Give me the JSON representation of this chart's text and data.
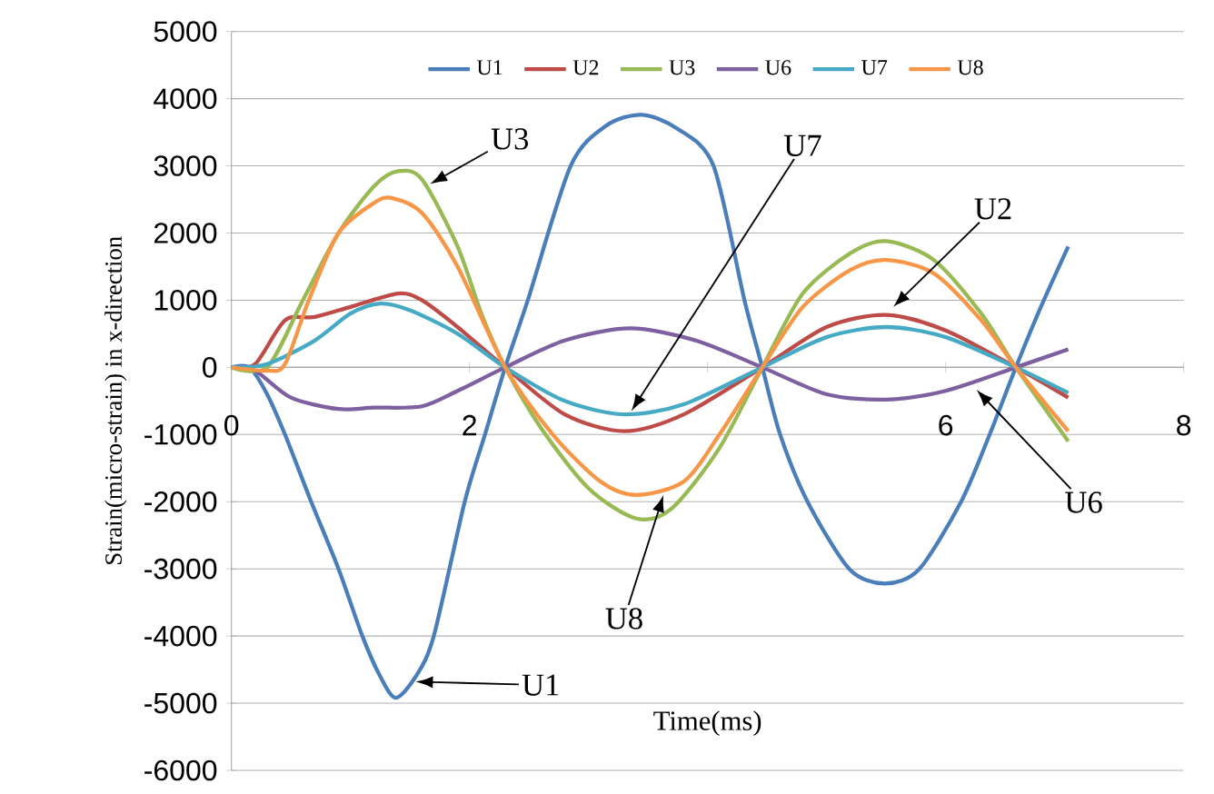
{
  "chart_data": {
    "type": "line",
    "xlabel": "Time(ms)",
    "ylabel": "Strain(micro-strain) in x-direction",
    "xlim": [
      0,
      8
    ],
    "ylim": [
      -6000,
      5000
    ],
    "xticks": [
      0,
      2,
      {
        "value": 4,
        "label": null
      },
      6,
      8
    ],
    "yticks": [
      -6000,
      -5000,
      -4000,
      -3000,
      -2000,
      -1000,
      0,
      1000,
      2000,
      3000,
      4000,
      5000
    ],
    "grid": "y",
    "legend": "top",
    "marker": "none",
    "line_style": "solid",
    "series": [
      {
        "name": "U1",
        "color": "#4a7ebb",
        "x": [
          0,
          0.15,
          0.3,
          0.45,
          0.67,
          0.9,
          1.1,
          1.25,
          1.38,
          1.55,
          1.7,
          1.96,
          2.13,
          2.3,
          2.49,
          2.85,
          3.15,
          3.45,
          3.75,
          4.05,
          4.31,
          4.46,
          4.61,
          4.84,
          5.19,
          5.49,
          5.78,
          6.13,
          6.37,
          6.59,
          6.8,
          7.03
        ],
        "values": [
          0,
          0,
          -400,
          -1000,
          -2000,
          -3000,
          -4000,
          -4600,
          -4920,
          -4600,
          -4000,
          -2000,
          -1000,
          0,
          1000,
          3000,
          3600,
          3760,
          3550,
          3000,
          1000,
          0,
          -1000,
          -2000,
          -3000,
          -3220,
          -3000,
          -2000,
          -1000,
          0,
          900,
          1800
        ]
      },
      {
        "name": "U2",
        "color": "#be4b48",
        "x": [
          0,
          0.2,
          0.45,
          0.7,
          1.0,
          1.4,
          1.6,
          1.9,
          2.3,
          2.8,
          3.3,
          3.8,
          4.46,
          5.0,
          5.5,
          6.0,
          6.59,
          7.03
        ],
        "values": [
          0,
          50,
          700,
          750,
          900,
          1100,
          1000,
          600,
          0,
          -700,
          -950,
          -700,
          0,
          600,
          780,
          550,
          0,
          -450
        ]
      },
      {
        "name": "U3",
        "color": "#98b954",
        "x": [
          0,
          0.3,
          0.6,
          0.9,
          1.2,
          1.4,
          1.6,
          1.9,
          2.1,
          2.3,
          2.6,
          3.0,
          3.4,
          3.7,
          4.1,
          4.46,
          4.8,
          5.2,
          5.5,
          5.9,
          6.3,
          6.59,
          7.03
        ],
        "values": [
          0,
          0,
          1000,
          2000,
          2700,
          2920,
          2800,
          1800,
          800,
          0,
          -900,
          -1800,
          -2250,
          -2100,
          -1200,
          0,
          1100,
          1700,
          1880,
          1600,
          800,
          0,
          -1100
        ]
      },
      {
        "name": "U6",
        "color": "#7d60a0",
        "x": [
          0,
          0.2,
          0.5,
          0.9,
          1.2,
          1.6,
          1.9,
          2.3,
          2.8,
          3.35,
          3.9,
          4.46,
          5.0,
          5.5,
          6.0,
          6.59,
          7.03
        ],
        "values": [
          0,
          -50,
          -450,
          -620,
          -600,
          -580,
          -350,
          0,
          400,
          580,
          400,
          0,
          -400,
          -480,
          -350,
          0,
          270
        ]
      },
      {
        "name": "U7",
        "color": "#46aac5",
        "x": [
          0,
          0.3,
          0.7,
          1.0,
          1.25,
          1.5,
          1.9,
          2.3,
          2.8,
          3.3,
          3.8,
          4.46,
          5.0,
          5.5,
          6.0,
          6.59,
          7.03
        ],
        "values": [
          0,
          50,
          400,
          800,
          950,
          850,
          500,
          0,
          -500,
          -700,
          -550,
          0,
          450,
          600,
          450,
          0,
          -380
        ]
      },
      {
        "name": "U8",
        "color": "#f79646",
        "x": [
          0,
          0.3,
          0.45,
          0.65,
          0.9,
          1.2,
          1.35,
          1.6,
          1.9,
          2.3,
          2.7,
          3.1,
          3.4,
          3.8,
          4.1,
          4.46,
          4.8,
          5.2,
          5.5,
          5.9,
          6.3,
          6.59,
          7.03
        ],
        "values": [
          0,
          -50,
          50,
          1000,
          2000,
          2450,
          2520,
          2300,
          1500,
          0,
          -1000,
          -1700,
          -1900,
          -1700,
          -1000,
          0,
          900,
          1450,
          1600,
          1400,
          700,
          0,
          -950
        ]
      }
    ],
    "annotations": [
      {
        "text": "U3",
        "x": 1.67,
        "y": 2730
      },
      {
        "text": "U7",
        "x": 3.36,
        "y": -650
      },
      {
        "text": "U2",
        "x": 5.56,
        "y": 900
      },
      {
        "text": "U6",
        "x": 6.26,
        "y": -335
      },
      {
        "text": "U8",
        "x": 3.63,
        "y": -1900
      },
      {
        "text": "U1",
        "x": 1.55,
        "y": -4680
      }
    ]
  }
}
